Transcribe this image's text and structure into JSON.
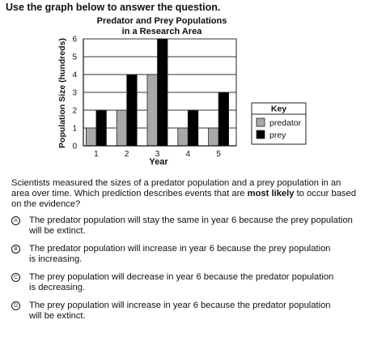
{
  "instruction": "Use the graph below to answer the question.",
  "chart_data": {
    "type": "bar",
    "title_lines": [
      "Predator and Prey Populations",
      "in a Research Area"
    ],
    "xlabel": "Year",
    "ylabel": "Population Size (hundreds)",
    "categories": [
      "1",
      "2",
      "3",
      "4",
      "5"
    ],
    "ylim": [
      0,
      6
    ],
    "yticks": [
      0,
      1,
      2,
      3,
      4,
      5,
      6
    ],
    "grid": true,
    "legend_title": "Key",
    "legend_position": "right",
    "series": [
      {
        "name": "predator",
        "color": "#a9a9a9",
        "values": [
          1,
          2,
          4,
          1,
          1
        ]
      },
      {
        "name": "prey",
        "color": "#000000",
        "values": [
          2,
          4,
          6,
          2,
          3
        ]
      }
    ]
  },
  "question": {
    "before_bold": "Scientists measured the sizes of a predator population and a prey population in an area over time. Which prediction describes events that are ",
    "bold": "most likely",
    "after_bold": " to occur based on the evidence?"
  },
  "choices": [
    {
      "letter": "A",
      "line1": "The predator population will stay the same in year 6 because the prey population",
      "line2": "will be extinct."
    },
    {
      "letter": "B",
      "line1": "The predator population will increase in year 6 because the prey population",
      "line2": "is increasing."
    },
    {
      "letter": "C",
      "line1": "The prey population will decrease in year 6 because the predator population",
      "line2": "is decreasing."
    },
    {
      "letter": "D",
      "line1": "The prey population will increase in year 6 because the predator population",
      "line2": "will be extinct."
    }
  ]
}
